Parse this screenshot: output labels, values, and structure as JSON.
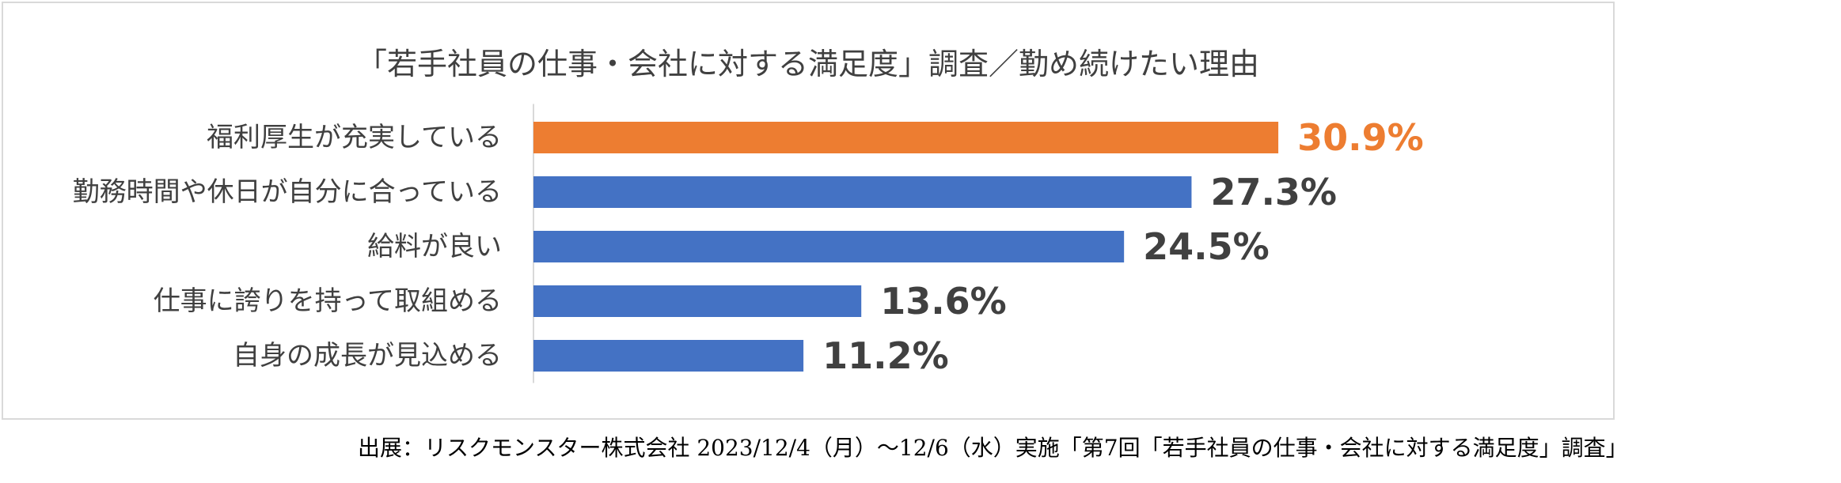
{
  "chart_data": {
    "type": "bar",
    "orientation": "horizontal",
    "title": "「若手社員の仕事・会社に対する満足度」調査／勤め続けたい理由",
    "categories": [
      "福利厚生が充実している",
      "勤務時間や休日が自分に合っている",
      "給料が良い",
      "仕事に誇りを持って取組める",
      "自身の成長が見込める"
    ],
    "values": [
      30.9,
      27.3,
      24.5,
      13.6,
      11.2
    ],
    "value_labels": [
      "30.9%",
      "27.3%",
      "24.5%",
      "13.6%",
      "11.2%"
    ],
    "unit": "%",
    "xlim": [
      0,
      37.3
    ],
    "grid": false,
    "legend": "none",
    "highlight_index": 0
  },
  "colors": {
    "highlight": "#ED7D31",
    "bar": "#4472C4",
    "label_default": "#404040",
    "axis": "#d9d9d9"
  },
  "source_note": "出展：リスクモンスター株式会社 2023/12/4（月）～12/6（水）実施「第7回「若手社員の仕事・会社に対する満足度」調査」"
}
